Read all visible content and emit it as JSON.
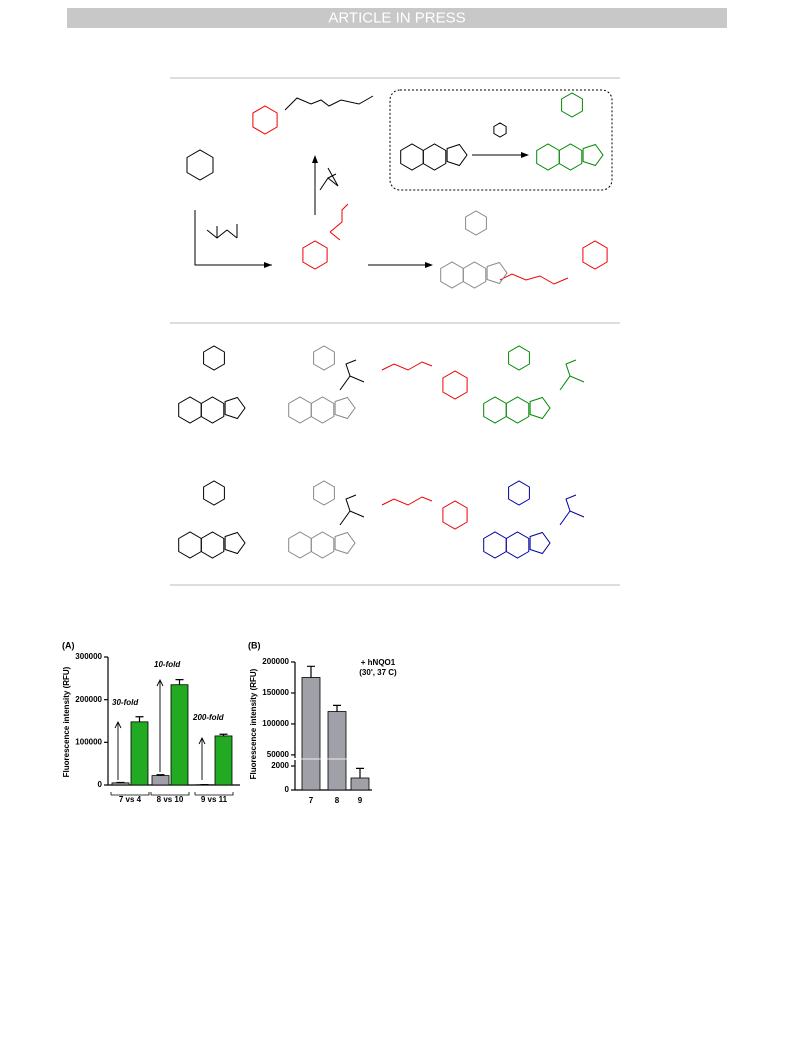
{
  "header": {
    "text": "ARTICLE IN PRESS"
  },
  "chart_data": [
    {
      "type": "bar",
      "panel_label": "(A)",
      "y_label": "Fluorescence intensity (RFU)",
      "categories": [
        "7 vs 4",
        "8 vs 10",
        "9 vs 11"
      ],
      "series": [
        {
          "color": "#a0a0a8",
          "values": [
            5000,
            22000,
            600
          ],
          "errors": [
            1000,
            2000,
            300
          ]
        },
        {
          "color": "#22aa22",
          "values": [
            148000,
            235000,
            115000
          ],
          "errors": [
            12000,
            12000,
            4000
          ]
        }
      ],
      "annotations": [
        "30-fold",
        "10-fold",
        "200-fold"
      ],
      "ylim": [
        0,
        300000
      ],
      "yticks": [
        0,
        100000,
        200000,
        300000
      ]
    },
    {
      "type": "broken-bar",
      "panel_label": "(B)",
      "y_label": "Fluorescence intensity (RFU)",
      "annotations": [
        "+ hNQO1",
        "(30', 37 C)"
      ],
      "categories": [
        "7",
        "8",
        "9"
      ],
      "values": [
        175000,
        120000,
        1000
      ],
      "errors": [
        18000,
        10000,
        800
      ],
      "color": "#a0a0a8",
      "ylim": [
        0,
        200000
      ],
      "y_break": [
        2500,
        45000
      ],
      "yticks": [
        0,
        2000,
        50000,
        100000,
        150000,
        200000
      ]
    }
  ]
}
